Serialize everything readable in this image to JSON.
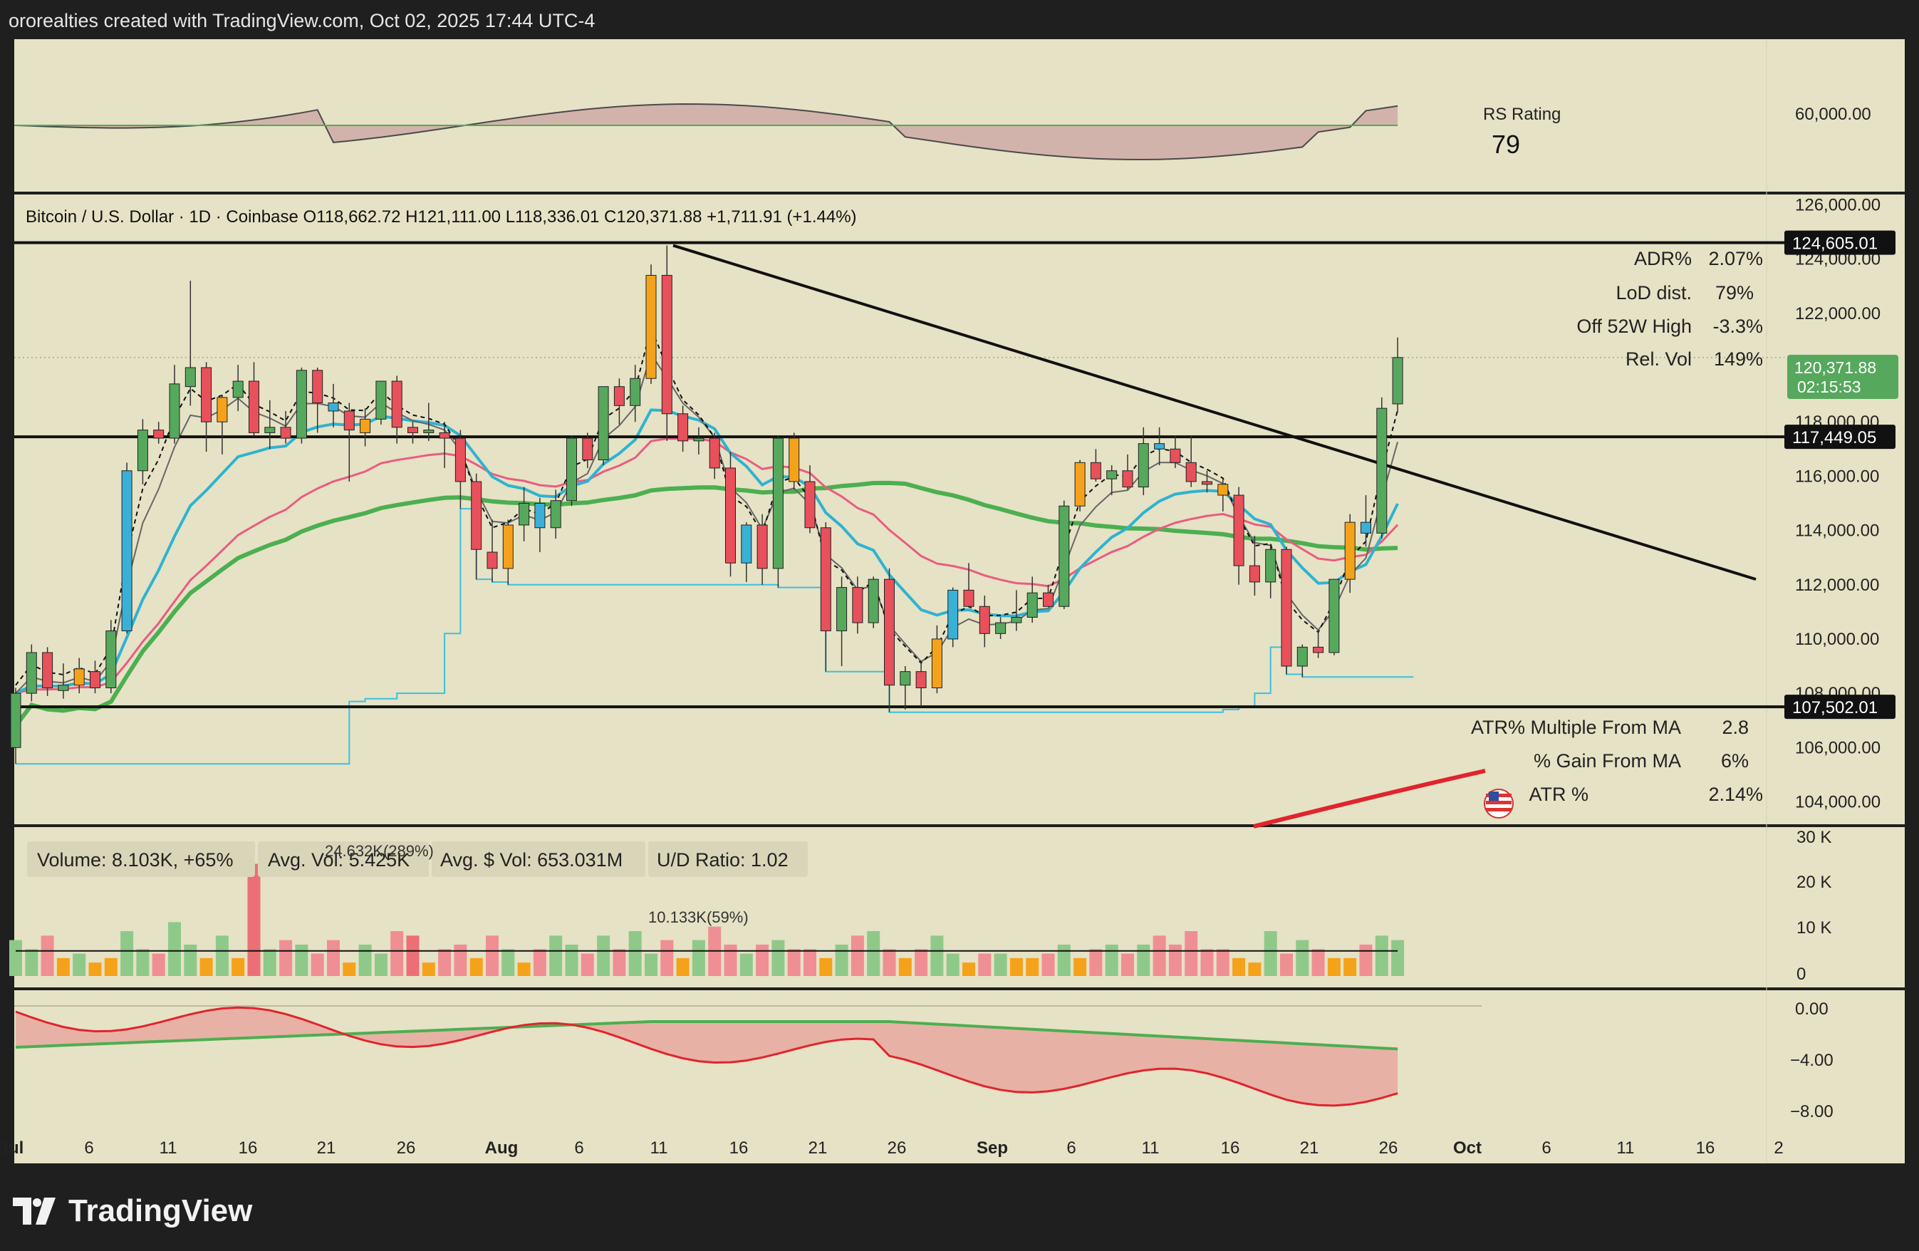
{
  "header": {
    "attribution": "ororealties created with TradingView.com, Oct 02, 2025 17:44 UTC-4"
  },
  "footer": {
    "brand": "TradingView"
  },
  "colors": {
    "panel_bg": "#e6e2c5",
    "frame_bg": "#1f1f1f",
    "up": "#56a85d",
    "down": "#e8505b",
    "cyan_candle": "#3ab0d6",
    "orange_candle": "#f5a21b",
    "ma_fast": "#2eb3d1",
    "ma_mid": "#ea5c80",
    "ma_slow": "#4caf50",
    "ma_200": "#e0242e",
    "step_line": "#3cc0dd"
  },
  "rs_panel": {
    "label": "RS Rating",
    "value": "79",
    "axis_label": "60,000.00"
  },
  "price_panel": {
    "legend": "Bitcoin / U.S. Dollar · 1D · Coinbase  O118,662.72  H121,111.00  L118,336.01  C120,371.88  +1,711.91 (+1.44%)",
    "stats_top": [
      {
        "label": "ADR%",
        "value": "2.07%"
      },
      {
        "label": "LoD dist.",
        "value": "79%"
      },
      {
        "label": "Off 52W High",
        "value": "-3.3%"
      },
      {
        "label": "Rel. Vol",
        "value": "149%"
      }
    ],
    "stats_bottom": [
      {
        "label": "ATR% Multiple From MA",
        "value": "2.8"
      },
      {
        "label": "% Gain From MA",
        "value": "6%"
      },
      {
        "label": "ATR %",
        "value": "2.14%"
      }
    ],
    "level_tags": [
      "124,605.01",
      "117,449.05",
      "107,502.01"
    ],
    "price_tag": {
      "price": "120,371.88",
      "countdown": "02:15:53"
    }
  },
  "volume_panel": {
    "legend": [
      "Volume: 8.103K, +65%",
      "Avg. Vol: 5.425K",
      "Avg. $ Vol: 653.031M",
      "U/D Ratio: 1.02"
    ],
    "annotations": [
      "24.632K(289%)",
      "10.133K(59%)"
    ],
    "axis": [
      "30 K",
      "20 K",
      "10 K",
      "0"
    ]
  },
  "osc_panel": {
    "axis": [
      "0.00",
      "−4.00",
      "−8.00"
    ]
  },
  "chart_data": {
    "type": "candlestick",
    "title": "Bitcoin / U.S. Dollar · 1D · Coinbase",
    "y_axis": {
      "ticks": [
        "126,000.00",
        "124,000.00",
        "122,000.00",
        "120,000.00",
        "118,000.00",
        "116,000.00",
        "114,000.00",
        "112,000.00",
        "110,000.00",
        "108,000.00",
        "106,000.00",
        "104,000.00"
      ],
      "ylim": [
        103200,
        126300
      ]
    },
    "x_axis": {
      "ticks": [
        "Jul",
        "6",
        "11",
        "16",
        "21",
        "26",
        "Aug",
        "6",
        "11",
        "16",
        "21",
        "26",
        "Sep",
        "6",
        "11",
        "16",
        "21",
        "26",
        "Oct",
        "6",
        "11",
        "16",
        "2"
      ]
    },
    "horizontal_levels": [
      124605.01,
      117449.05,
      107502.01
    ],
    "trendline": [
      [
        124500,
        "Aug 13"
      ],
      [
        112200,
        "Nov 1"
      ]
    ],
    "ohlc": [
      [
        106000,
        108200,
        105400,
        108000
      ],
      [
        108000,
        109800,
        107700,
        109500
      ],
      [
        109500,
        109700,
        107900,
        108200
      ],
      [
        108100,
        109100,
        107800,
        108300
      ],
      [
        108300,
        109300,
        108000,
        108900
      ],
      [
        108800,
        109200,
        108000,
        108200
      ],
      [
        108200,
        110700,
        108000,
        110300
      ],
      [
        110300,
        116500,
        110200,
        116200
      ],
      [
        116200,
        118100,
        115700,
        117700
      ],
      [
        117700,
        118000,
        117200,
        117400
      ],
      [
        117400,
        120100,
        117200,
        119400
      ],
      [
        119300,
        123200,
        118600,
        120000
      ],
      [
        120000,
        120200,
        116900,
        118000
      ],
      [
        118000,
        119000,
        116800,
        118900
      ],
      [
        118900,
        120100,
        118400,
        119500
      ],
      [
        119500,
        120200,
        117500,
        117600
      ],
      [
        117600,
        118800,
        117000,
        117800
      ],
      [
        117800,
        118400,
        117200,
        117400
      ],
      [
        117400,
        120000,
        117200,
        119900
      ],
      [
        119900,
        120000,
        117600,
        118700
      ],
      [
        118700,
        119400,
        117800,
        118400
      ],
      [
        118400,
        118700,
        115800,
        117700
      ],
      [
        117600,
        118500,
        117100,
        118100
      ],
      [
        118100,
        119500,
        117900,
        119500
      ],
      [
        119500,
        119700,
        117200,
        117800
      ],
      [
        117800,
        118000,
        117200,
        117600
      ],
      [
        117600,
        118700,
        117300,
        117700
      ],
      [
        117600,
        118000,
        116300,
        117400
      ],
      [
        117400,
        117700,
        114800,
        115800
      ],
      [
        115800,
        116100,
        112200,
        113300
      ],
      [
        113200,
        114400,
        112100,
        112600
      ],
      [
        112600,
        114400,
        112000,
        114200
      ],
      [
        114200,
        115600,
        113600,
        115000
      ],
      [
        115000,
        115200,
        113200,
        114100
      ],
      [
        114100,
        115500,
        113700,
        115100
      ],
      [
        115100,
        117500,
        114900,
        117400
      ],
      [
        117400,
        117600,
        116300,
        116600
      ],
      [
        116600,
        119300,
        116400,
        119300
      ],
      [
        119300,
        119600,
        117900,
        118600
      ],
      [
        118600,
        120100,
        118000,
        119600
      ],
      [
        119600,
        123800,
        119400,
        123400
      ],
      [
        123400,
        124500,
        117300,
        118300
      ],
      [
        118300,
        118600,
        116900,
        117300
      ],
      [
        117300,
        117800,
        116800,
        117400
      ],
      [
        117400,
        117600,
        115900,
        116300
      ],
      [
        116300,
        116900,
        112300,
        112800
      ],
      [
        112800,
        114300,
        112100,
        114200
      ],
      [
        114200,
        114600,
        112000,
        112600
      ],
      [
        112600,
        117500,
        111900,
        117400
      ],
      [
        117400,
        117600,
        115500,
        115800
      ],
      [
        115800,
        116400,
        113900,
        114100
      ],
      [
        114100,
        114300,
        108800,
        110300
      ],
      [
        110300,
        112300,
        109000,
        111900
      ],
      [
        111900,
        112300,
        110200,
        110600
      ],
      [
        110600,
        112300,
        110400,
        112200
      ],
      [
        112200,
        112600,
        107300,
        108300
      ],
      [
        108300,
        109000,
        107400,
        108800
      ],
      [
        108800,
        109200,
        107500,
        108200
      ],
      [
        108200,
        110500,
        108000,
        110000
      ],
      [
        110000,
        111900,
        109700,
        111800
      ],
      [
        111800,
        112800,
        111300,
        111200
      ],
      [
        111200,
        111600,
        109700,
        110200
      ],
      [
        110200,
        110800,
        110000,
        110600
      ],
      [
        110600,
        111800,
        110300,
        110800
      ],
      [
        110800,
        112300,
        110600,
        111700
      ],
      [
        111700,
        112000,
        111200,
        111200
      ],
      [
        111200,
        115100,
        111100,
        114900
      ],
      [
        114900,
        116600,
        114700,
        116500
      ],
      [
        116500,
        117000,
        115800,
        115900
      ],
      [
        115900,
        116400,
        115300,
        116200
      ],
      [
        116200,
        116800,
        115500,
        115600
      ],
      [
        115600,
        117800,
        115300,
        117200
      ],
      [
        117200,
        117800,
        116400,
        117000
      ],
      [
        117000,
        117500,
        116300,
        116500
      ],
      [
        116500,
        117500,
        115600,
        115800
      ],
      [
        115800,
        116200,
        115400,
        115700
      ],
      [
        115700,
        115900,
        114700,
        115300
      ],
      [
        115300,
        115600,
        112000,
        112700
      ],
      [
        112700,
        113800,
        111600,
        112100
      ],
      [
        112100,
        113500,
        111500,
        113300
      ],
      [
        113300,
        113400,
        108700,
        109000
      ],
      [
        109000,
        109800,
        108600,
        109700
      ],
      [
        109700,
        110300,
        109300,
        109500
      ],
      [
        109500,
        112200,
        109400,
        112200
      ],
      [
        112200,
        114600,
        111700,
        114300
      ],
      [
        114300,
        115300,
        113400,
        113900
      ],
      [
        113900,
        118900,
        113700,
        118500
      ],
      [
        118662.72,
        121111.0,
        118336.01,
        120371.88
      ]
    ],
    "volume_K": [
      8,
      6,
      9,
      4,
      5,
      3,
      4,
      10,
      6,
      5,
      12,
      7,
      4,
      9,
      4,
      25,
      6,
      8,
      7,
      5,
      8,
      3,
      7,
      5,
      10,
      9,
      3,
      6,
      7,
      4,
      9,
      6,
      3,
      6,
      9,
      7,
      5,
      9,
      6,
      10,
      5,
      8,
      4,
      8,
      11,
      7,
      5,
      7,
      8,
      6,
      6,
      4,
      7,
      9,
      10,
      6,
      4,
      6,
      9,
      5,
      3,
      5,
      5,
      4,
      4,
      5,
      7,
      4,
      6,
      7,
      5,
      7,
      9,
      7,
      10,
      6,
      6,
      4,
      3,
      10,
      5,
      8,
      6,
      4,
      4,
      7,
      9,
      8
    ]
  }
}
